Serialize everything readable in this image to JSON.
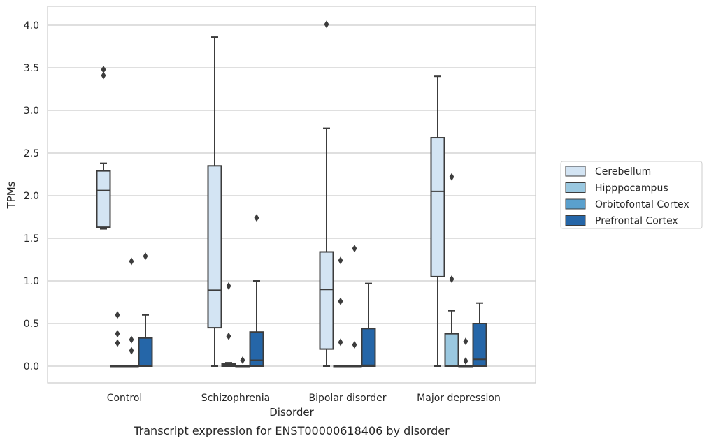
{
  "caption": "Transcript expression for ENST00000618406 by disorder",
  "chart_data": {
    "type": "boxplot",
    "xlabel": "Disorder",
    "ylabel": "TPMs",
    "ylim": [
      -0.2,
      4.22
    ],
    "yticks": [
      0.0,
      0.5,
      1.0,
      1.5,
      2.0,
      2.5,
      3.0,
      3.5,
      4.0
    ],
    "ytick_labels": [
      "0.0",
      "0.5",
      "1.0",
      "1.5",
      "2.0",
      "2.5",
      "3.0",
      "3.5",
      "4.0"
    ],
    "grid": "horizontal",
    "legend_position": "right",
    "categories": [
      "Control",
      "Schizophrenia",
      "Bipolar disorder",
      "Major depression"
    ],
    "series": [
      {
        "name": "Cerebellum",
        "color": "#d3e4f3",
        "boxes": [
          {
            "whislo": 1.61,
            "q1": 1.63,
            "med": 2.06,
            "q3": 2.29,
            "whishi": 2.38,
            "fliers": [
              3.48,
              3.41
            ]
          },
          {
            "whislo": 0.0,
            "q1": 0.45,
            "med": 0.89,
            "q3": 2.35,
            "whishi": 3.86,
            "fliers": []
          },
          {
            "whislo": 0.0,
            "q1": 0.2,
            "med": 0.9,
            "q3": 1.34,
            "whishi": 2.79,
            "fliers": [
              4.01
            ]
          },
          {
            "whislo": 0.0,
            "q1": 1.05,
            "med": 2.05,
            "q3": 2.68,
            "whishi": 3.4,
            "fliers": []
          }
        ]
      },
      {
        "name": "Hipppocampus",
        "color": "#9ac8e0",
        "boxes": [
          {
            "whislo": 0.0,
            "q1": 0.0,
            "med": 0.0,
            "q3": 0.0,
            "whishi": 0.0,
            "fliers": [
              0.6,
              0.38,
              0.27
            ]
          },
          {
            "whislo": 0.0,
            "q1": 0.0,
            "med": 0.02,
            "q3": 0.03,
            "whishi": 0.04,
            "fliers": [
              0.94,
              0.35
            ]
          },
          {
            "whislo": 0.0,
            "q1": 0.0,
            "med": 0.0,
            "q3": 0.0,
            "whishi": 0.0,
            "fliers": [
              1.24,
              0.76,
              0.28
            ]
          },
          {
            "whislo": 0.0,
            "q1": 0.0,
            "med": 0.0,
            "q3": 0.38,
            "whishi": 0.65,
            "fliers": [
              2.22,
              1.02
            ]
          }
        ]
      },
      {
        "name": "Orbitofontal Cortex",
        "color": "#5aa0cd",
        "boxes": [
          {
            "whislo": 0.0,
            "q1": 0.0,
            "med": 0.0,
            "q3": 0.0,
            "whishi": 0.0,
            "fliers": [
              1.23,
              0.31,
              0.18
            ]
          },
          {
            "whislo": 0.0,
            "q1": 0.0,
            "med": 0.0,
            "q3": 0.0,
            "whishi": 0.0,
            "fliers": [
              0.07
            ]
          },
          {
            "whislo": 0.0,
            "q1": 0.0,
            "med": 0.0,
            "q3": 0.0,
            "whishi": 0.0,
            "fliers": [
              1.38,
              0.25
            ]
          },
          {
            "whislo": 0.0,
            "q1": 0.0,
            "med": 0.0,
            "q3": 0.0,
            "whishi": 0.0,
            "fliers": [
              0.29,
              0.06
            ]
          }
        ]
      },
      {
        "name": "Prefrontal Cortex",
        "color": "#2566a8",
        "boxes": [
          {
            "whislo": 0.0,
            "q1": 0.0,
            "med": 0.0,
            "q3": 0.33,
            "whishi": 0.6,
            "fliers": [
              1.29
            ]
          },
          {
            "whislo": 0.0,
            "q1": 0.0,
            "med": 0.07,
            "q3": 0.4,
            "whishi": 1.0,
            "fliers": [
              1.74
            ]
          },
          {
            "whislo": 0.0,
            "q1": 0.0,
            "med": 0.01,
            "q3": 0.44,
            "whishi": 0.97,
            "fliers": []
          },
          {
            "whislo": 0.0,
            "q1": 0.0,
            "med": 0.08,
            "q3": 0.5,
            "whishi": 0.74,
            "fliers": []
          }
        ]
      }
    ]
  }
}
